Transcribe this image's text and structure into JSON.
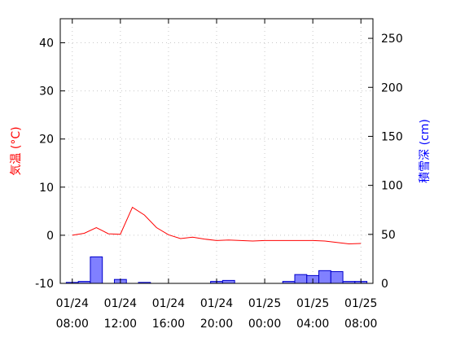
{
  "chart_data": {
    "type": "line+bar",
    "title": "",
    "colors": {
      "temperature": "#ff0000",
      "snow_fill": "#8080ff",
      "snow_edge": "#0000cc",
      "grid": "#c8c8c8"
    },
    "x_ticks": [
      {
        "date": "01/24",
        "time": "08:00"
      },
      {
        "date": "01/24",
        "time": "12:00"
      },
      {
        "date": "01/24",
        "time": "16:00"
      },
      {
        "date": "01/24",
        "time": "20:00"
      },
      {
        "date": "01/25",
        "time": "00:00"
      },
      {
        "date": "01/25",
        "time": "04:00"
      },
      {
        "date": "01/25",
        "time": "08:00"
      }
    ],
    "y_left": {
      "label": "気温 (°C)",
      "ylim": [
        -10,
        45
      ],
      "ticks": [
        -10,
        0,
        10,
        20,
        30,
        40
      ]
    },
    "y_right": {
      "label": "積雪深 (cm)",
      "ylim": [
        0,
        270
      ],
      "ticks": [
        0,
        50,
        100,
        150,
        200,
        250
      ]
    },
    "grid": true,
    "temperature": {
      "hours": [
        "01/24 08:00",
        "01/24 09:00",
        "01/24 10:00",
        "01/24 11:00",
        "01/24 12:00",
        "01/24 13:00",
        "01/24 14:00",
        "01/24 15:00",
        "01/24 16:00",
        "01/24 17:00",
        "01/24 18:00",
        "01/24 19:00",
        "01/24 20:00",
        "01/24 21:00",
        "01/24 22:00",
        "01/24 23:00",
        "01/25 00:00",
        "01/25 01:00",
        "01/25 02:00",
        "01/25 03:00",
        "01/25 04:00",
        "01/25 05:00",
        "01/25 06:00",
        "01/25 07:00",
        "01/25 08:00"
      ],
      "values": [
        0.0,
        0.4,
        1.6,
        0.3,
        0.2,
        5.8,
        4.2,
        1.6,
        0.1,
        -0.7,
        -0.4,
        -0.8,
        -1.1,
        -1.0,
        -1.1,
        -1.2,
        -1.1,
        -1.1,
        -1.1,
        -1.1,
        -1.1,
        -1.2,
        -1.5,
        -1.8,
        -1.7
      ]
    },
    "snow_depth": {
      "hours": [
        "01/24 08:00",
        "01/24 09:00",
        "01/24 10:00",
        "01/24 11:00",
        "01/24 12:00",
        "01/24 13:00",
        "01/24 14:00",
        "01/24 15:00",
        "01/24 16:00",
        "01/24 17:00",
        "01/24 18:00",
        "01/24 19:00",
        "01/24 20:00",
        "01/24 21:00",
        "01/24 22:00",
        "01/24 23:00",
        "01/25 00:00",
        "01/25 01:00",
        "01/25 02:00",
        "01/25 03:00",
        "01/25 04:00",
        "01/25 05:00",
        "01/25 06:00",
        "01/25 07:00",
        "01/25 08:00"
      ],
      "values": [
        1,
        2,
        27,
        0,
        4,
        0,
        1,
        0,
        0,
        0,
        0,
        0,
        2,
        3,
        0,
        0,
        0,
        0,
        2,
        9,
        8,
        13,
        12,
        2,
        2
      ]
    }
  }
}
